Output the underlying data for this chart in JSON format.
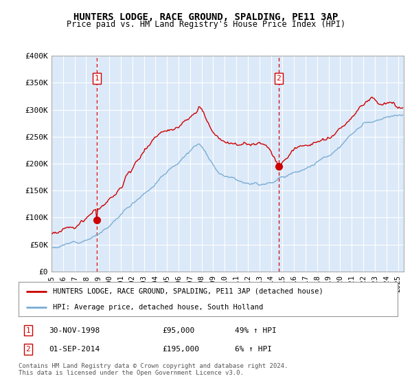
{
  "title": "HUNTERS LODGE, RACE GROUND, SPALDING, PE11 3AP",
  "subtitle": "Price paid vs. HM Land Registry's House Price Index (HPI)",
  "ylabel_ticks": [
    "£0",
    "£50K",
    "£100K",
    "£150K",
    "£200K",
    "£250K",
    "£300K",
    "£350K",
    "£400K"
  ],
  "ylim": [
    0,
    400000
  ],
  "xlim_start": 1995.0,
  "xlim_end": 2025.5,
  "background_color": "#dce9f8",
  "plot_bg": "#dce9f8",
  "grid_color": "#ffffff",
  "sale1_x": 1998.92,
  "sale1_y": 95000,
  "sale1_label": "1",
  "sale1_date": "30-NOV-1998",
  "sale1_price": "£95,000",
  "sale1_hpi": "49% ↑ HPI",
  "sale2_x": 2014.67,
  "sale2_y": 195000,
  "sale2_label": "2",
  "sale2_date": "01-SEP-2014",
  "sale2_price": "£195,000",
  "sale2_hpi": "6% ↑ HPI",
  "legend_line1": "HUNTERS LODGE, RACE GROUND, SPALDING, PE11 3AP (detached house)",
  "legend_line2": "HPI: Average price, detached house, South Holland",
  "footer": "Contains HM Land Registry data © Crown copyright and database right 2024.\nThis data is licensed under the Open Government Licence v3.0.",
  "red_color": "#cc0000",
  "blue_color": "#7aadd4",
  "marker_box_color": "#cc0000"
}
